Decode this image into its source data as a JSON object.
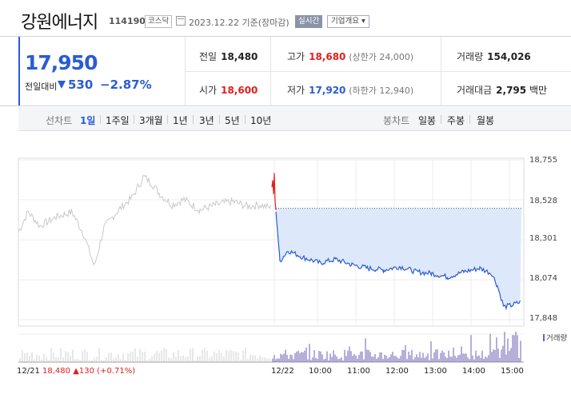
{
  "header": {
    "company_name": "강원에너지",
    "code": "114190",
    "market": "코스닥",
    "date_text": "2023.12.22  기준(장마감)",
    "realtime_label": "실시간",
    "overview_label": "기업개요 ▾"
  },
  "price": {
    "current": "17,950",
    "compare_label": "전일대비",
    "change": "530",
    "change_pct": "−2.87%"
  },
  "stats": {
    "prev_close_label": "전일",
    "prev_close": "18,480",
    "high_label": "고가",
    "high": "18,680",
    "upper_limit": "(상한가 24,000)",
    "volume_label": "거래량",
    "volume": "154,026",
    "open_label": "시가",
    "open": "18,600",
    "low_label": "저가",
    "low": "17,920",
    "lower_limit": "(하한가 12,940)",
    "amount_label": "거래대금",
    "amount": "2,795",
    "amount_unit": "백만"
  },
  "toolbar": {
    "line_chart_label": "선차트",
    "periods": [
      "1일",
      "1주일",
      "3개월",
      "1년",
      "3년",
      "5년",
      "10년"
    ],
    "candle_label": "봉차트",
    "candles": [
      "일봉",
      "주봉",
      "월봉"
    ]
  },
  "chart_data": {
    "type": "line",
    "y_ticks": [
      "18,755",
      "18,528",
      "18,301",
      "18,074",
      "17,848"
    ],
    "x_ticks": [
      "12/22",
      "10:00",
      "11:00",
      "12:00",
      "13:00",
      "14:00",
      "15:00"
    ],
    "ylim": [
      17848,
      18755
    ],
    "prev_close": 18480,
    "volume_label": "거래량",
    "prev_day": {
      "date": "12/21",
      "close": "18,480",
      "change": "▲130 (+0.71%)"
    }
  },
  "colors": {
    "accent_blue": "#2a5bd7",
    "up_red": "#e0201e",
    "volume_purple": "#6c5fb5",
    "fill_light_blue": "#dde9fa"
  }
}
